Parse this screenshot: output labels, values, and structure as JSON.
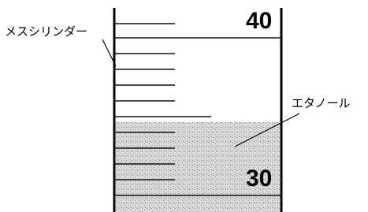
{
  "labels": {
    "cylinder": "メスシリンダー",
    "liquid": "エタノール"
  },
  "scale": {
    "upper": "40",
    "lower": "30"
  }
}
